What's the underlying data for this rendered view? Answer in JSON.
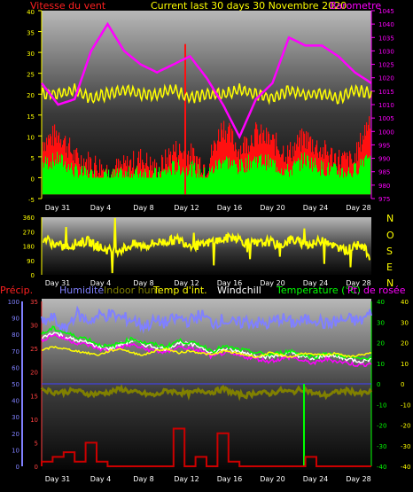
{
  "header": {
    "title": "Current last 30 days 30 Novembre 2020",
    "left_label": "Vitesse du vent",
    "right_label": "Barometre"
  },
  "middle": {
    "compass": [
      "N",
      "O",
      "S",
      "E",
      "N"
    ]
  },
  "bottom_legend": {
    "precip": "Précip.",
    "humidity": "Humidité",
    "indoor_hum": "Indoor hum",
    "indoor_temp": "Temp d'int.",
    "windchill": "Windchill",
    "temperature": "Temperature (°C)",
    "dewpoint": "Pt. de rosée"
  },
  "colors": {
    "wind_gust": "#ff1010",
    "wind_avg": "#00ff00",
    "barometer": "#ff00ff",
    "wind_dir": "#ffff00",
    "wind_top_line": "#ffff00",
    "precip": "#cc0000",
    "humidity": "#8080ff",
    "indoor_hum": "#808000",
    "indoor_temp": "#ffff00",
    "windchill": "#ffffff",
    "temperature": "#00ff00",
    "dewpoint": "#ff00ff",
    "left_axis_top": "#ffff00",
    "left_axis_precip": "#ff4040",
    "left_axis_hum": "#8080ff"
  },
  "chart_data": [
    {
      "type": "area",
      "x_ticks": [
        "Day 31",
        "Day 4",
        "Day 8",
        "Day 12",
        "Day 16",
        "Day 20",
        "Day 24",
        "Day 28"
      ],
      "left_axis": {
        "label": "Vitesse du vent",
        "ticks": [
          40,
          35,
          30,
          25,
          20,
          15,
          10,
          5,
          0,
          -5
        ],
        "ylim": [
          -5,
          40
        ]
      },
      "right_axis": {
        "label": "Barometre",
        "ticks": [
          1045,
          1040,
          1035,
          1030,
          1025,
          1020,
          1015,
          1010,
          1005,
          1000,
          995,
          990,
          985,
          980,
          975
        ],
        "ylim": [
          975,
          1045
        ]
      },
      "series": [
        {
          "name": "Barometre",
          "axis": "right",
          "values": [
            1018,
            1010,
            1012,
            1030,
            1040,
            1030,
            1025,
            1022,
            1025,
            1028,
            1020,
            1010,
            998,
            1012,
            1018,
            1035,
            1032,
            1032,
            1028,
            1022,
            1018
          ]
        },
        {
          "name": "Vitesse du vent",
          "axis": "left",
          "values": [
            20,
            20,
            21,
            19,
            20,
            21,
            20,
            20,
            21,
            19,
            20,
            20,
            21,
            20,
            19,
            21,
            20,
            20,
            19,
            21,
            20
          ]
        },
        {
          "values": [
            8,
            10,
            4,
            3,
            1,
            2,
            4,
            1,
            6,
            5,
            2,
            12,
            6,
            10,
            8,
            5,
            9,
            6,
            4,
            3,
            14
          ]
        },
        {
          "values": [
            3,
            4,
            1,
            0,
            0,
            0,
            1,
            0,
            2,
            2,
            0,
            4,
            2,
            4,
            3,
            1,
            4,
            2,
            1,
            1,
            6
          ]
        }
      ]
    },
    {
      "type": "scatter",
      "x_ticks": [
        "Day 31",
        "Day 4",
        "Day 8",
        "Day 12",
        "Day 16",
        "Day 20",
        "Day 24",
        "Day 28"
      ],
      "left_axis": {
        "ticks": [
          360,
          270,
          180,
          90,
          0
        ],
        "ylim": [
          0,
          360
        ]
      },
      "series": [
        {
          "values": [
            230,
            190,
            170,
            200,
            210,
            170,
            150,
            160,
            190,
            180,
            200,
            210,
            220,
            190,
            180,
            210,
            220,
            240,
            200,
            190,
            210,
            180,
            220,
            200,
            190,
            230,
            170,
            150,
            210,
            120
          ]
        }
      ]
    },
    {
      "type": "line",
      "x_ticks": [
        "Day 31",
        "Day 4",
        "Day 8",
        "Day 12",
        "Day 16",
        "Day 20",
        "Day 24",
        "Day 28"
      ],
      "precip_axis": {
        "ticks": [
          35,
          30,
          25,
          20,
          15,
          10,
          5,
          0
        ],
        "ylim": [
          0,
          35
        ]
      },
      "humidity_axis": {
        "ticks": [
          100,
          90,
          80,
          70,
          60,
          50,
          40,
          30,
          20,
          10,
          0
        ],
        "ylim": [
          0,
          100
        ]
      },
      "temp_axis": {
        "ticks": [
          40,
          30,
          20,
          10,
          0,
          -10,
          -20,
          -30,
          -40
        ],
        "ylim": [
          -40,
          40
        ]
      },
      "series": [
        {
          "name": "Humidité",
          "values": [
            87,
            90,
            82,
            93,
            88,
            91,
            92,
            90,
            89,
            85,
            88,
            87,
            90,
            88,
            92,
            87,
            89,
            86,
            88,
            87,
            86,
            90,
            87,
            88,
            90,
            86,
            88,
            89,
            88,
            93
          ]
        },
        {
          "name": "Indoor hum",
          "values": [
            47,
            45,
            45,
            46,
            44,
            44,
            45,
            47,
            45,
            44,
            43,
            46,
            45,
            44,
            46,
            45,
            47,
            44,
            43,
            45,
            44,
            46,
            45,
            47,
            44,
            43,
            45,
            46,
            44,
            45
          ]
        },
        {
          "name": "Temp d'int.",
          "values": [
            16,
            18,
            17,
            16,
            15,
            14,
            16,
            17,
            15,
            14,
            16,
            17,
            15,
            16,
            15,
            14,
            16,
            15,
            14,
            13,
            15,
            14,
            13,
            15,
            14,
            14,
            15,
            13,
            14,
            15
          ]
        },
        {
          "name": "Windchill",
          "values": [
            22,
            25,
            23,
            21,
            20,
            18,
            17,
            19,
            21,
            19,
            18,
            17,
            20,
            19,
            18,
            15,
            17,
            16,
            15,
            14,
            13,
            14,
            15,
            13,
            12,
            14,
            13,
            12,
            11,
            12
          ]
        },
        {
          "name": "Temperature (°C)",
          "values": [
            24,
            27,
            25,
            23,
            22,
            19,
            18,
            20,
            22,
            20,
            19,
            18,
            21,
            20,
            19,
            16,
            18,
            17,
            16,
            15,
            14,
            15,
            16,
            14,
            13,
            15,
            14,
            13,
            12,
            13
          ]
        },
        {
          "name": "Pt. de rosée",
          "values": [
            21,
            24,
            22,
            20,
            19,
            17,
            16,
            18,
            19,
            17,
            16,
            15,
            18,
            17,
            16,
            13,
            15,
            14,
            13,
            12,
            11,
            12,
            13,
            11,
            10,
            12,
            11,
            10,
            9,
            10
          ]
        },
        {
          "name": "Précip.",
          "values": [
            1,
            2,
            3,
            1,
            5,
            1,
            0,
            0,
            0,
            0,
            0,
            0,
            8,
            0,
            2,
            0,
            7,
            1,
            0,
            0,
            0,
            0,
            0,
            0,
            2,
            0,
            0,
            0,
            0,
            0
          ]
        }
      ]
    }
  ]
}
